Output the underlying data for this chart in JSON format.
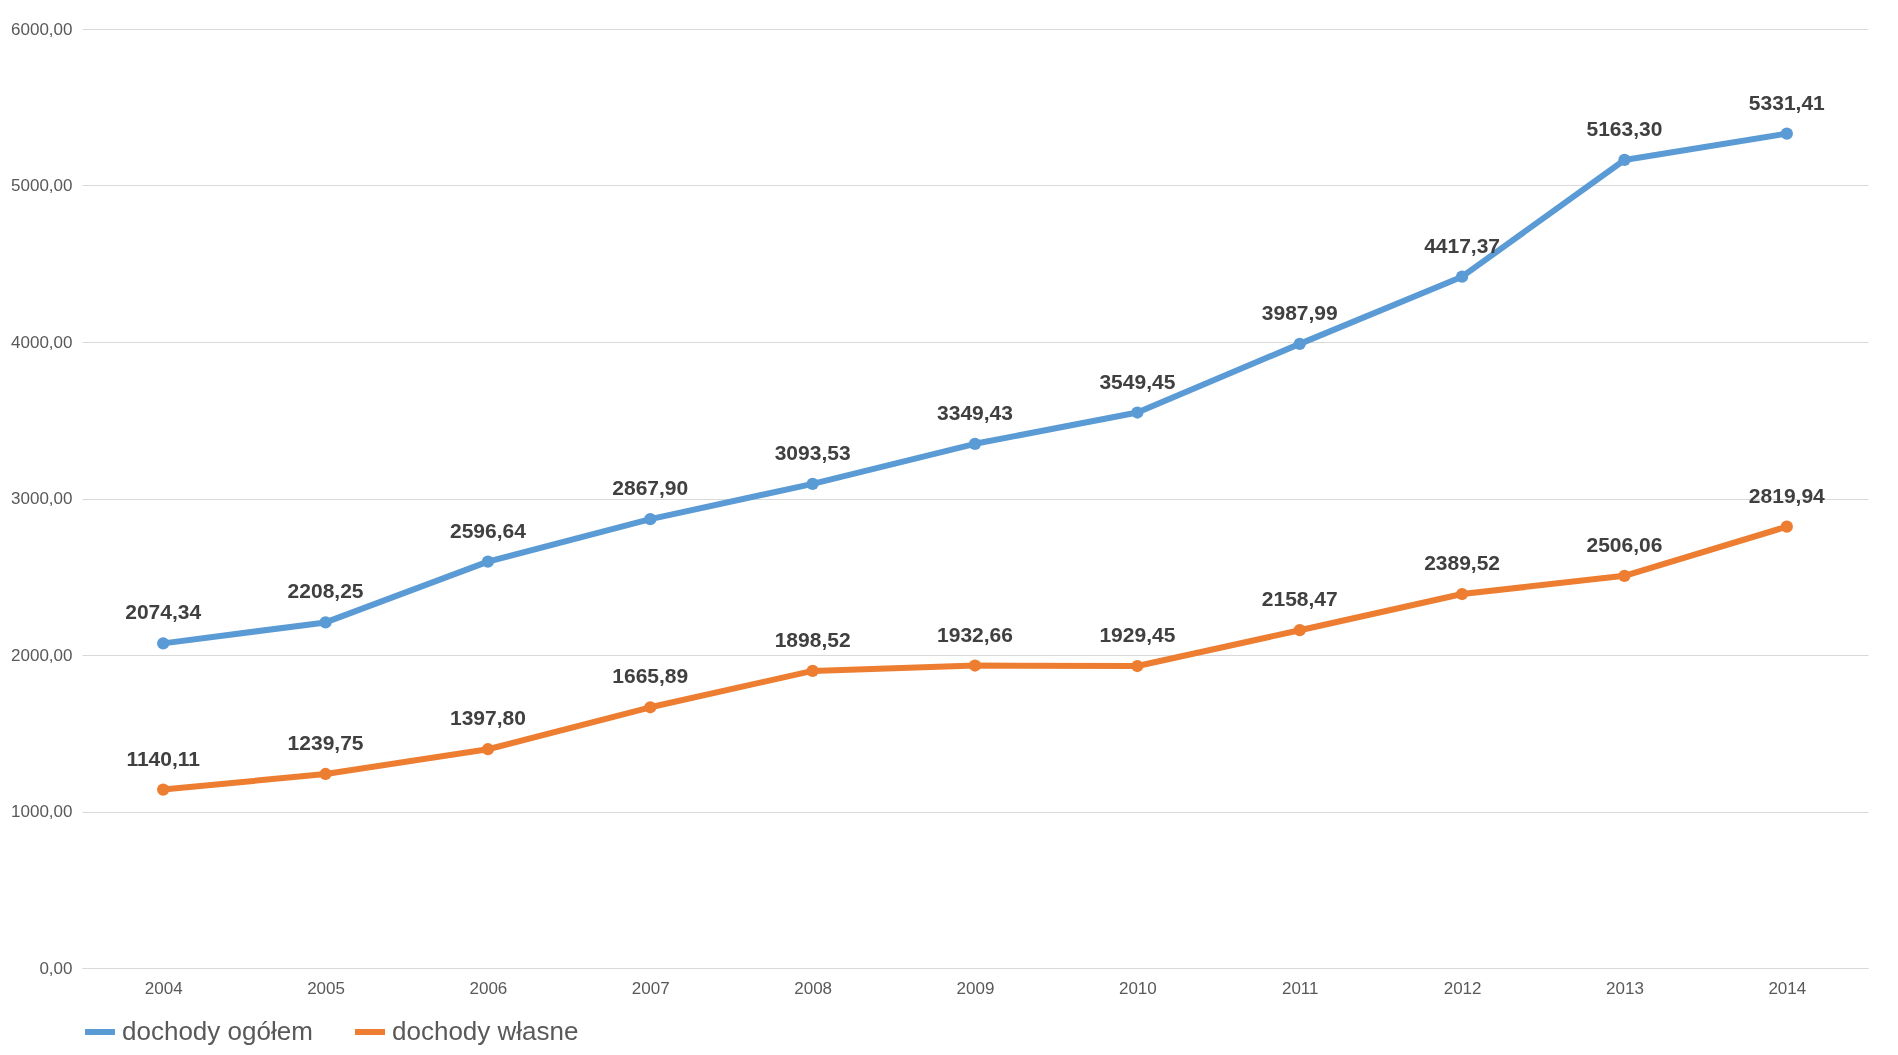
{
  "chart_data": {
    "type": "line",
    "categories": [
      "2004",
      "2005",
      "2006",
      "2007",
      "2008",
      "2009",
      "2010",
      "2011",
      "2012",
      "2013",
      "2014"
    ],
    "series": [
      {
        "name": "dochody ogółem",
        "color": "#5b9bd5",
        "values": [
          2074.34,
          2208.25,
          2596.64,
          2867.9,
          3093.53,
          3349.43,
          3549.45,
          3987.99,
          4417.37,
          5163.3,
          5331.41
        ],
        "value_labels": [
          "2074,34",
          "2208,25",
          "2596,64",
          "2867,90",
          "3093,53",
          "3349,43",
          "3549,45",
          "3987,99",
          "4417,37",
          "5163,30",
          "5331,41"
        ]
      },
      {
        "name": "dochody własne",
        "color": "#ed7d31",
        "values": [
          1140.11,
          1239.75,
          1397.8,
          1665.89,
          1898.52,
          1932.66,
          1929.45,
          2158.47,
          2389.52,
          2506.06,
          2819.94
        ],
        "value_labels": [
          "1140,11",
          "1239,75",
          "1397,80",
          "1665,89",
          "1898,52",
          "1932,66",
          "1929,45",
          "2158,47",
          "2389,52",
          "2506,06",
          "2819,94"
        ]
      }
    ],
    "ylim": [
      0,
      6000
    ],
    "yticks": [
      {
        "value": 0,
        "label": "0,00"
      },
      {
        "value": 1000,
        "label": "1000,00"
      },
      {
        "value": 2000,
        "label": "2000,00"
      },
      {
        "value": 3000,
        "label": "3000,00"
      },
      {
        "value": 4000,
        "label": "4000,00"
      },
      {
        "value": 5000,
        "label": "5000,00"
      },
      {
        "value": 6000,
        "label": "6000,00"
      }
    ],
    "grid": "y",
    "legend": "bottom",
    "marker": "circle",
    "line_style": "solid"
  }
}
